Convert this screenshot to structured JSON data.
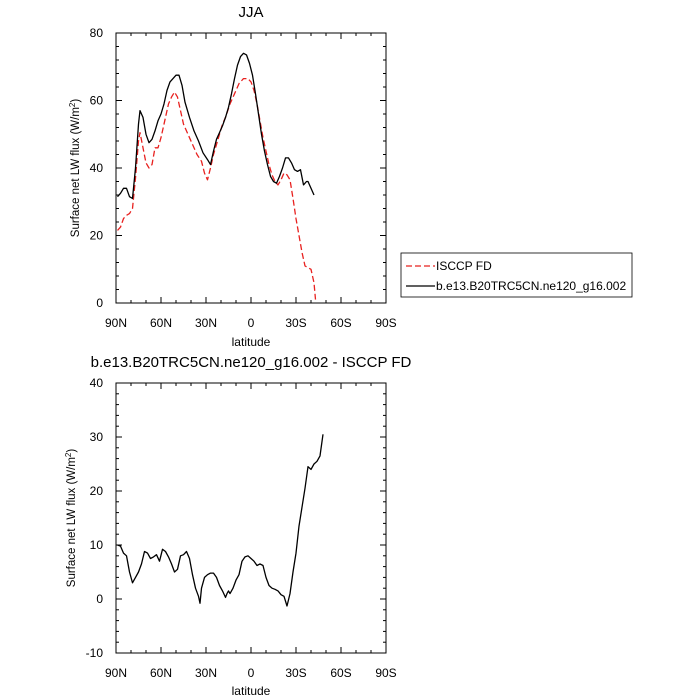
{
  "chart_data": [
    {
      "type": "line",
      "title": "JJA",
      "xlabel": "latitude",
      "ylabel": "Surface net LW flux (W/m",
      "ylabel_sup": "2",
      "ylabel_close": ")",
      "xlim": [
        90,
        -90
      ],
      "ylim": [
        0,
        80
      ],
      "xticks": [
        90,
        60,
        30,
        0,
        -30,
        -60,
        -90
      ],
      "xtick_labels": [
        "90N",
        "60N",
        "30N",
        "0",
        "30S",
        "60S",
        "90S"
      ],
      "yticks": [
        0,
        20,
        40,
        60,
        80
      ],
      "ytick_labels": [
        "0",
        "20",
        "40",
        "60",
        "80"
      ],
      "legend_position": "right",
      "series": [
        {
          "name": "ISCCP FD",
          "color": "#e8211f",
          "dash": "dashed",
          "points": [
            [
              89,
              21.5
            ],
            [
              87,
              22.5
            ],
            [
              85,
              25
            ],
            [
              83,
              26
            ],
            [
              81,
              26.5
            ],
            [
              79,
              28
            ],
            [
              77,
              37
            ],
            [
              75,
              48
            ],
            [
              74,
              50.5
            ],
            [
              72,
              46
            ],
            [
              70,
              41.5
            ],
            [
              68,
              40
            ],
            [
              66,
              41
            ],
            [
              64,
              46
            ],
            [
              62,
              46
            ],
            [
              60,
              49
            ],
            [
              57,
              55
            ],
            [
              55,
              59
            ],
            [
              53,
              61
            ],
            [
              51,
              62.5
            ],
            [
              49,
              61
            ],
            [
              47,
              57
            ],
            [
              45,
              53
            ],
            [
              42,
              50
            ],
            [
              39,
              47
            ],
            [
              36,
              44
            ],
            [
              33,
              42
            ],
            [
              31,
              38.5
            ],
            [
              29,
              36.5
            ],
            [
              27,
              40
            ],
            [
              25,
              44
            ],
            [
              23,
              47
            ],
            [
              21,
              50
            ],
            [
              19,
              53
            ],
            [
              17,
              55
            ],
            [
              14,
              59
            ],
            [
              11,
              62
            ],
            [
              8,
              65
            ],
            [
              5,
              66.5
            ],
            [
              2,
              66.5
            ],
            [
              0,
              65.5
            ],
            [
              -2,
              63
            ],
            [
              -4,
              59
            ],
            [
              -6,
              54
            ],
            [
              -8,
              49
            ],
            [
              -10,
              45
            ],
            [
              -12,
              41
            ],
            [
              -14,
              38
            ],
            [
              -16,
              36
            ],
            [
              -18,
              35
            ],
            [
              -20,
              36.5
            ],
            [
              -22,
              38.5
            ],
            [
              -24,
              38
            ],
            [
              -26,
              36.5
            ],
            [
              -28,
              31
            ],
            [
              -30,
              25
            ],
            [
              -32,
              20
            ],
            [
              -34,
              15
            ],
            [
              -36,
              11
            ],
            [
              -38,
              10.5
            ],
            [
              -40,
              10
            ],
            [
              -42,
              6
            ],
            [
              -43,
              1
            ]
          ]
        },
        {
          "name": "b.e13.B20TRC5CN.ne120_g16.002",
          "color": "#000000",
          "dash": "solid",
          "points": [
            [
              89,
              31.5
            ],
            [
              87,
              32.5
            ],
            [
              85,
              34
            ],
            [
              83,
              34
            ],
            [
              81,
              31.5
            ],
            [
              79,
              31
            ],
            [
              77,
              40
            ],
            [
              75,
              53
            ],
            [
              74,
              57
            ],
            [
              72,
              55
            ],
            [
              70,
              50
            ],
            [
              68,
              47.5
            ],
            [
              66,
              48.5
            ],
            [
              64,
              51
            ],
            [
              62,
              54
            ],
            [
              60,
              56
            ],
            [
              58,
              59
            ],
            [
              56,
              63
            ],
            [
              54,
              65.5
            ],
            [
              52,
              66.5
            ],
            [
              50,
              67.5
            ],
            [
              48,
              67.5
            ],
            [
              46,
              64.5
            ],
            [
              44,
              59.5
            ],
            [
              41,
              55
            ],
            [
              38,
              51
            ],
            [
              35,
              48
            ],
            [
              32,
              44.5
            ],
            [
              29,
              42.5
            ],
            [
              27,
              41
            ],
            [
              25,
              45
            ],
            [
              23,
              48.5
            ],
            [
              21,
              50.5
            ],
            [
              19,
              52.5
            ],
            [
              17,
              55
            ],
            [
              15,
              58
            ],
            [
              13,
              62
            ],
            [
              11,
              66.5
            ],
            [
              9,
              70.5
            ],
            [
              7,
              73
            ],
            [
              5,
              74
            ],
            [
              3,
              73.5
            ],
            [
              1,
              71
            ],
            [
              -1,
              67.5
            ],
            [
              -3,
              62
            ],
            [
              -5,
              56
            ],
            [
              -7,
              50
            ],
            [
              -9,
              45
            ],
            [
              -11,
              41
            ],
            [
              -13,
              37.5
            ],
            [
              -15,
              36
            ],
            [
              -17,
              35.5
            ],
            [
              -19,
              37.5
            ],
            [
              -21,
              40
            ],
            [
              -23,
              43
            ],
            [
              -25,
              43
            ],
            [
              -27,
              41.5
            ],
            [
              -29,
              39.5
            ],
            [
              -31,
              39
            ],
            [
              -33,
              39.5
            ],
            [
              -35,
              35
            ],
            [
              -37,
              36
            ],
            [
              -38,
              36
            ],
            [
              -40,
              34
            ],
            [
              -42,
              32
            ]
          ]
        }
      ]
    },
    {
      "type": "line",
      "title": "b.e13.B20TRC5CN.ne120_g16.002 - ISCCP FD",
      "xlabel": "latitude",
      "ylabel": "Surface net LW flux (W/m",
      "ylabel_sup": "2",
      "ylabel_close": ")",
      "xlim": [
        90,
        -90
      ],
      "ylim": [
        -10,
        40
      ],
      "xticks": [
        90,
        60,
        30,
        0,
        -30,
        -60,
        -90
      ],
      "xtick_labels": [
        "90N",
        "60N",
        "30N",
        "0",
        "30S",
        "60S",
        "90S"
      ],
      "yticks": [
        -10,
        0,
        10,
        20,
        30,
        40
      ],
      "ytick_labels": [
        "-10",
        "0",
        "10",
        "20",
        "30",
        "40"
      ],
      "series": [
        {
          "name": "",
          "color": "#000000",
          "dash": "solid",
          "points": [
            [
              89,
              10
            ],
            [
              87,
              9.8
            ],
            [
              85,
              8.5
            ],
            [
              83,
              8
            ],
            [
              81,
              5
            ],
            [
              79,
              3
            ],
            [
              77,
              4
            ],
            [
              75,
              5
            ],
            [
              73,
              6.5
            ],
            [
              71,
              8.8
            ],
            [
              69,
              8.5
            ],
            [
              67,
              7.5
            ],
            [
              65,
              7.8
            ],
            [
              63,
              8.2
            ],
            [
              61,
              7
            ],
            [
              59,
              9.2
            ],
            [
              57,
              8.8
            ],
            [
              55,
              7.8
            ],
            [
              53,
              6.5
            ],
            [
              51,
              5
            ],
            [
              49,
              5.5
            ],
            [
              47,
              8
            ],
            [
              45,
              8.2
            ],
            [
              43,
              8.8
            ],
            [
              41,
              7.5
            ],
            [
              39,
              4.5
            ],
            [
              37,
              2
            ],
            [
              35,
              0.5
            ],
            [
              34,
              -0.8
            ],
            [
              33,
              2
            ],
            [
              31,
              4
            ],
            [
              29,
              4.5
            ],
            [
              27,
              4.8
            ],
            [
              25,
              4.8
            ],
            [
              23,
              4
            ],
            [
              21,
              2.5
            ],
            [
              19,
              1.5
            ],
            [
              17,
              0.3
            ],
            [
              16,
              1
            ],
            [
              15,
              1.5
            ],
            [
              14,
              1
            ],
            [
              12,
              2
            ],
            [
              10,
              3.5
            ],
            [
              8,
              4.5
            ],
            [
              6,
              7
            ],
            [
              4,
              7.8
            ],
            [
              2,
              8
            ],
            [
              0,
              7.5
            ],
            [
              -2,
              7
            ],
            [
              -4,
              6.2
            ],
            [
              -6,
              6.5
            ],
            [
              -8,
              6.2
            ],
            [
              -10,
              4
            ],
            [
              -12,
              2.5
            ],
            [
              -14,
              2
            ],
            [
              -16,
              1.8
            ],
            [
              -18,
              1.5
            ],
            [
              -20,
              0.8
            ],
            [
              -22,
              0.5
            ],
            [
              -24,
              -1.3
            ],
            [
              -26,
              1
            ],
            [
              -28,
              5
            ],
            [
              -30,
              8.5
            ],
            [
              -32,
              13.5
            ],
            [
              -34,
              17
            ],
            [
              -36,
              20.5
            ],
            [
              -38,
              24.5
            ],
            [
              -40,
              24
            ],
            [
              -42,
              25
            ],
            [
              -44,
              25.5
            ],
            [
              -46,
              26.5
            ],
            [
              -48,
              30.5
            ]
          ]
        }
      ]
    }
  ]
}
